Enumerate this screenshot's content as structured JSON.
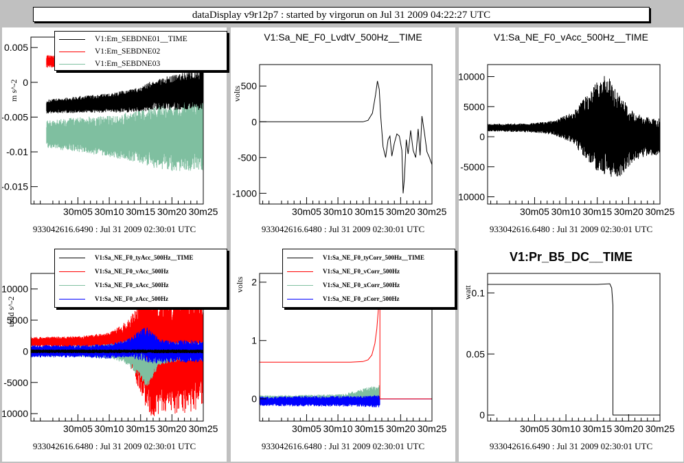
{
  "window": {
    "title": "dataDisplay v9r12p7 : started by virgorun on  Jul 31 2009 04:22:27 UTC"
  },
  "colors": {
    "background": "#c0c0c0",
    "black": "#000000",
    "red": "#ff0000",
    "teal": "#7fbfa0",
    "blue": "#0000ff"
  },
  "chart_data": [
    {
      "type": "line",
      "title": "",
      "ylabel": "m s^-2",
      "footer": "933042616.6490 : Jul 31 2009 02:30:01 UTC",
      "x_ticks": [
        "30m05",
        "30m10",
        "30m15",
        "30m20",
        "30m25"
      ],
      "x": [
        0,
        5,
        10,
        15,
        17,
        20,
        23,
        25
      ],
      "xlim": [
        -2.5,
        25
      ],
      "ylim": [
        -0.0175,
        0.0065
      ],
      "y_ticks": [
        0.005,
        0,
        -0.005,
        -0.01,
        -0.015
      ],
      "y_tick_labels": [
        "0.005",
        "0",
        "-0.005",
        "-0.01",
        "-0.015"
      ],
      "series": [
        {
          "name": "V1:Em_SEBDNE01__TIME",
          "color": "#000000",
          "center": [
            -0.0035,
            -0.0032,
            -0.003,
            -0.0025,
            -0.0018,
            -0.0015,
            -0.0012,
            -0.001
          ],
          "amp": [
            0.001,
            0.0012,
            0.0014,
            0.0018,
            0.0022,
            0.0025,
            0.0028,
            0.003
          ]
        },
        {
          "name": "V1:Em_SEBDNE02",
          "color": "#ff0000",
          "center": [
            0.003,
            0.003,
            0.003,
            0.003,
            0.003,
            0.003,
            0.003,
            0.003
          ],
          "amp": [
            0.0009,
            0.0009,
            0.0009,
            0.001,
            0.001,
            0.001,
            0.001,
            0.001
          ]
        },
        {
          "name": "V1:Em_SEBDNE03",
          "color": "#7fbfa0",
          "center": [
            -0.0075,
            -0.0075,
            -0.0078,
            -0.0078,
            -0.0078,
            -0.0078,
            -0.0075,
            -0.0075
          ],
          "amp": [
            0.002,
            0.0025,
            0.003,
            0.0038,
            0.0045,
            0.005,
            0.0052,
            0.0052
          ]
        }
      ]
    },
    {
      "type": "line",
      "title": "V1:Sa_NE_F0_LvdtV_500Hz__TIME",
      "ylabel": "volts",
      "footer": "933042616.6480 : Jul 31 2009 02:30:01 UTC",
      "x_ticks": [
        "30m05",
        "30m10",
        "30m15",
        "30m20",
        "30m25"
      ],
      "xlim": [
        -2.5,
        25
      ],
      "ylim": [
        -1150,
        800
      ],
      "y_ticks": [
        500,
        0,
        -500,
        -1000
      ],
      "y_tick_labels": [
        "500",
        "0",
        "-500",
        "-1000"
      ],
      "series": [
        {
          "name": "",
          "color": "#000000",
          "x": [
            -2.5,
            14,
            14.8,
            15.5,
            16,
            16.3,
            16.6,
            16.8,
            17.2,
            17.6,
            18,
            18.3,
            18.6,
            19,
            19.4,
            19.8,
            20.2,
            20.4,
            20.6,
            20.9,
            21.2,
            21.6,
            22,
            22.4,
            22.8,
            23.1,
            23.4,
            23.8,
            24.2,
            24.6,
            25
          ],
          "y": [
            0,
            0,
            20,
            120,
            380,
            570,
            450,
            100,
            -350,
            -500,
            -250,
            -200,
            -480,
            -300,
            -170,
            -200,
            -400,
            -1000,
            -800,
            -250,
            -450,
            -120,
            -400,
            -500,
            -100,
            -470,
            80,
            -150,
            -420,
            -500,
            -600
          ]
        }
      ]
    },
    {
      "type": "line",
      "title": "V1:Sa_NE_F0_vAcc_500Hz__TIME",
      "ylabel": "",
      "footer": "933042616.6480 : Jul 31 2009 02:30:01 UTC",
      "x_ticks": [
        "30m05",
        "30m10",
        "30m15",
        "30m20",
        "30m25"
      ],
      "xlim": [
        -2.5,
        25
      ],
      "ylim": [
        -11200,
        12000
      ],
      "y_ticks": [
        10000,
        5000,
        0,
        -5000,
        -10000
      ],
      "y_tick_labels": [
        "10000",
        "5000",
        "0",
        "-5000",
        "-10000"
      ],
      "series": [
        {
          "name": "",
          "color": "#000000",
          "x": [
            -2.5,
            5,
            8,
            11,
            13,
            15,
            16.5,
            17.5,
            18.5,
            20,
            22,
            25
          ],
          "center": [
            1500,
            1500,
            1500,
            1500,
            1500,
            1800,
            2000,
            1000,
            0,
            0,
            0,
            0
          ],
          "amp": [
            600,
            800,
            1200,
            2500,
            5000,
            7500,
            8500,
            8000,
            7000,
            5000,
            3500,
            3000
          ]
        }
      ]
    },
    {
      "type": "line",
      "title": "",
      "ylabel": "urad s^-2",
      "footer": "933042616.6480 : Jul 31 2009 02:30:01 UTC",
      "x_ticks": [
        "30m05",
        "30m10",
        "30m15",
        "30m20",
        "30m25"
      ],
      "x": [
        -2.5,
        5,
        10,
        13,
        15,
        16,
        17,
        18,
        20,
        23,
        25
      ],
      "xlim": [
        -2.5,
        25
      ],
      "ylim": [
        -11200,
        12500
      ],
      "y_ticks": [
        10000,
        5000,
        0,
        -5000,
        -10000
      ],
      "y_tick_labels": [
        "10000",
        "5000",
        "0",
        "-5000",
        "-10000"
      ],
      "series": [
        {
          "name": "V1:Sa_NE_F0_tyAcc_500Hz__TIME",
          "color": "#000000",
          "center": [
            0,
            0,
            0,
            0,
            0,
            0,
            0,
            0,
            0,
            0,
            0
          ],
          "amp": [
            300,
            300,
            300,
            300,
            300,
            300,
            300,
            300,
            300,
            300,
            300
          ]
        },
        {
          "name": "V1:Sa_NE_F0_vAcc_500Hz",
          "color": "#ff0000",
          "center": [
            1500,
            1500,
            1500,
            1500,
            1000,
            0,
            -500,
            0,
            0,
            0,
            0
          ],
          "amp": [
            800,
            900,
            1500,
            3500,
            8000,
            10000,
            10000,
            10000,
            10000,
            10000,
            9000
          ]
        },
        {
          "name": "V1:Sa_NE_F0_xAcc_500Hz",
          "color": "#7fbfa0",
          "center": [
            0,
            0,
            0,
            -200,
            -1500,
            -3500,
            -2000,
            -500,
            -200,
            0,
            0
          ],
          "amp": [
            800,
            900,
            1200,
            2000,
            3000,
            2500,
            2000,
            1800,
            1600,
            1500,
            1500
          ]
        },
        {
          "name": "V1:Sa_NE_F0_zAcc_500Hz",
          "color": "#0000ff",
          "center": [
            0,
            0,
            0,
            500,
            1000,
            1000,
            500,
            0,
            0,
            0,
            0
          ],
          "amp": [
            1000,
            1000,
            1200,
            1500,
            2500,
            3000,
            2500,
            2000,
            1800,
            1800,
            1800
          ]
        }
      ]
    },
    {
      "type": "line",
      "title": "",
      "ylabel": "volts",
      "footer": "933042616.6480 : Jul 31 2009 02:30:01 UTC",
      "x_ticks": [
        "30m05",
        "30m10",
        "30m15",
        "30m20",
        "30m25"
      ],
      "xlim": [
        -2.5,
        25
      ],
      "ylim": [
        -0.38,
        2.15
      ],
      "y_ticks": [
        2,
        1,
        0
      ],
      "y_tick_labels": [
        "2",
        "1",
        "0"
      ],
      "series": [
        {
          "name": "V1:Sa_NE_F0_tyCorr_500Hz__TIME",
          "color": "#000000",
          "x": [
            -2.5,
            16.7
          ],
          "y": [
            0,
            0
          ]
        },
        {
          "name": "V1:Sa_NE_F0_vCorr_500Hz",
          "color": "#ff0000",
          "x": [
            -2.5,
            12,
            14,
            14.8,
            15.4,
            15.9,
            16.2,
            16.5,
            16.7,
            16.7,
            25
          ],
          "y": [
            0.63,
            0.63,
            0.64,
            0.67,
            0.75,
            0.95,
            1.2,
            1.6,
            2.1,
            0,
            0
          ]
        },
        {
          "name": "V1:Sa_NE_F0_xCorr_500Hz",
          "color": "#7fbfa0",
          "x_band": [
            -2.5,
            5,
            10,
            13,
            15,
            16.7
          ],
          "center": [
            0,
            0,
            0,
            0.02,
            0.05,
            0.06
          ],
          "amp": [
            0.06,
            0.07,
            0.08,
            0.12,
            0.16,
            0.2
          ]
        },
        {
          "name": "V1:Sa_NE_F0_zCorr_500Hz",
          "color": "#0000ff",
          "x_band": [
            -2.5,
            5,
            10,
            13,
            15,
            16.7
          ],
          "center": [
            -0.04,
            -0.04,
            -0.04,
            -0.04,
            -0.04,
            -0.04
          ],
          "amp": [
            0.08,
            0.09,
            0.09,
            0.09,
            0.1,
            0.11
          ],
          "x_after": [
            16.7,
            25
          ],
          "y_after": 0
        }
      ]
    },
    {
      "type": "line",
      "title": "V1:Pr_B5_DC__TIME",
      "ylabel": "watt",
      "footer": "933042616.6490 : Jul 31 2009 02:30:01 UTC",
      "x_ticks": [
        "30m05",
        "30m10",
        "30m15",
        "30m20",
        "30m25"
      ],
      "xlim": [
        -2.5,
        25
      ],
      "ylim": [
        -0.005,
        0.116
      ],
      "y_ticks": [
        0.1,
        0.05,
        0
      ],
      "y_tick_labels": [
        "0.1",
        "0.05",
        "0"
      ],
      "series": [
        {
          "name": "",
          "color": "#000000",
          "x": [
            -2.5,
            5,
            10,
            15,
            17,
            17.3,
            17.5,
            17.5,
            25
          ],
          "y": [
            0.107,
            0.107,
            0.107,
            0.107,
            0.1075,
            0.104,
            0.09,
            0,
            0
          ]
        }
      ]
    }
  ]
}
